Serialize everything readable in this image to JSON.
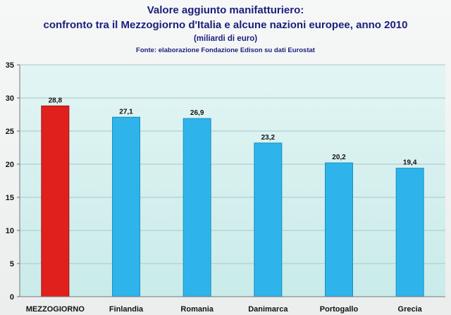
{
  "chart_data": {
    "type": "bar",
    "title": "Valore aggiunto manifatturiero:",
    "subtitle": "confronto tra il Mezzogiorno d'Italia e alcune nazioni europee, anno 2010",
    "unit": "(miliardi di euro)",
    "source": "Fonte: elaborazione Fondazione Edison su dati Eurostat",
    "categories": [
      "MEZZOGIORNO",
      "Finlandia",
      "Romania",
      "Danimarca",
      "Portogallo",
      "Grecia"
    ],
    "values": [
      28.8,
      27.1,
      26.9,
      23.2,
      20.2,
      19.4
    ],
    "data_labels": [
      "28,8",
      "27,1",
      "26,9",
      "23,2",
      "20,2",
      "19,4"
    ],
    "yticks": [
      0,
      5,
      10,
      15,
      20,
      25,
      30,
      35
    ],
    "ylim": [
      0,
      35
    ],
    "colors": {
      "highlight": "#e0201c",
      "bars": "#2eb4ea",
      "plot_background": "#d6f0ef"
    },
    "highlight_index": 0
  }
}
